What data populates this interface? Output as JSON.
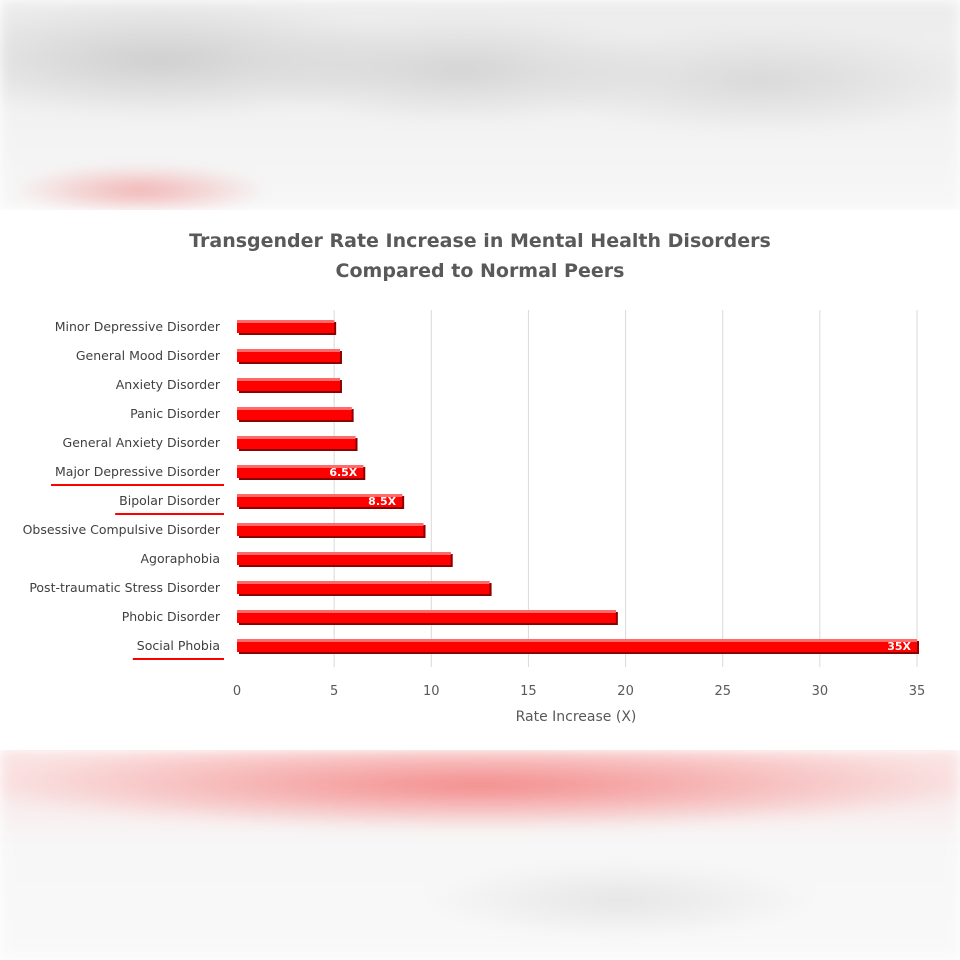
{
  "chart_data": {
    "type": "bar",
    "orientation": "horizontal",
    "title_line1": "Transgender Rate Increase in Mental Health Disorders",
    "title_line2": "Compared to Normal Peers",
    "xlabel": "Rate Increase (X)",
    "xlim": [
      0,
      35
    ],
    "xticks": [
      0,
      5,
      10,
      15,
      20,
      25,
      30,
      35
    ],
    "grid": "vertical",
    "bar_color": "#ff0000",
    "underline_color": "#ff0000",
    "categories": [
      {
        "label": "Minor Depressive Disorder",
        "value": 5.0,
        "data_label": "",
        "underlined": false
      },
      {
        "label": "General Mood Disorder",
        "value": 5.3,
        "data_label": "",
        "underlined": false
      },
      {
        "label": "Anxiety Disorder",
        "value": 5.3,
        "data_label": "",
        "underlined": false
      },
      {
        "label": "Panic Disorder",
        "value": 5.9,
        "data_label": "",
        "underlined": false
      },
      {
        "label": "General Anxiety Disorder",
        "value": 6.1,
        "data_label": "",
        "underlined": false
      },
      {
        "label": "Major Depressive Disorder",
        "value": 6.5,
        "data_label": "6.5X",
        "underlined": true
      },
      {
        "label": "Bipolar Disorder",
        "value": 8.5,
        "data_label": "8.5X",
        "underlined": true
      },
      {
        "label": "Obsessive Compulsive Disorder",
        "value": 9.6,
        "data_label": "",
        "underlined": false
      },
      {
        "label": "Agoraphobia",
        "value": 11.0,
        "data_label": "",
        "underlined": false
      },
      {
        "label": "Post-traumatic Stress Disorder",
        "value": 13.0,
        "data_label": "",
        "underlined": false
      },
      {
        "label": "Phobic Disorder",
        "value": 19.5,
        "data_label": "",
        "underlined": false
      },
      {
        "label": "Social Phobia",
        "value": 35.0,
        "data_label": "35X",
        "underlined": true
      }
    ]
  }
}
